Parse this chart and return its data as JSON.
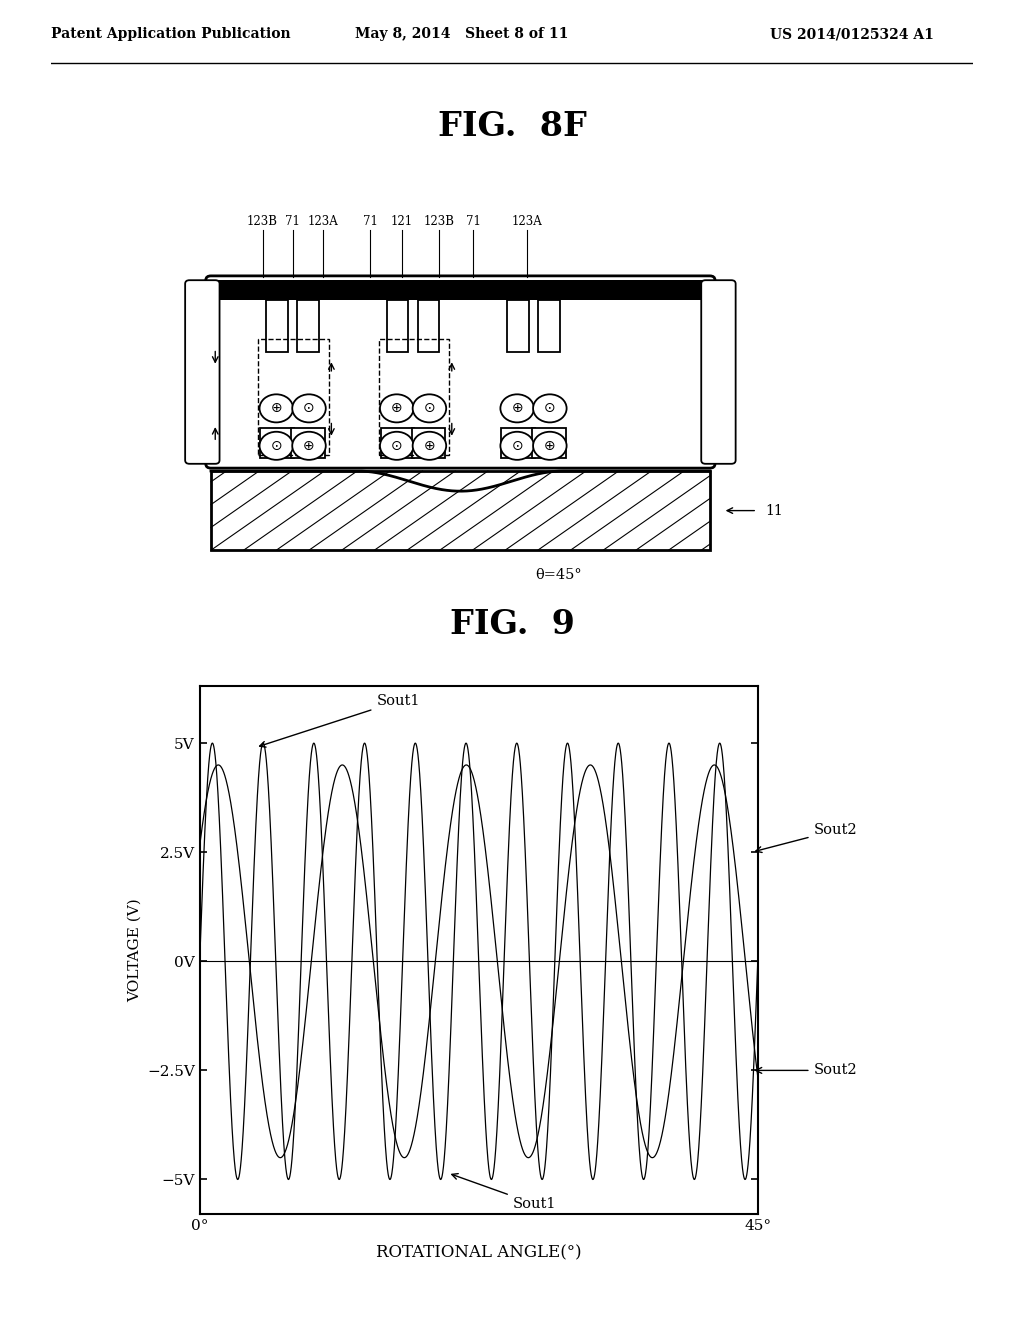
{
  "header_left": "Patent Application Publication",
  "header_mid": "May 8, 2014   Sheet 8 of 11",
  "header_right": "US 2014/0125324 A1",
  "fig8f_title": "FIG.  8F",
  "fig9_title": "FIG.  9",
  "ylabel": "VOLTAGE (V)",
  "xlabel": "ROTATIONAL ANGLE(°)",
  "yticks": [
    "5V",
    "2.5V",
    "0V",
    "−2.5V",
    "−5V"
  ],
  "yvals": [
    5,
    2.5,
    0,
    -2.5,
    -5
  ],
  "xtick_left": "0°",
  "xtick_right": "45°",
  "sout1_label_top": "Sout1",
  "sout1_label_bot": "Sout1",
  "sout2_label_top": "Sout2",
  "sout2_label_bot": "Sout2",
  "arrow_label": "θ=45°",
  "label_11": "11",
  "background_color": "#ffffff",
  "line_color": "#000000"
}
